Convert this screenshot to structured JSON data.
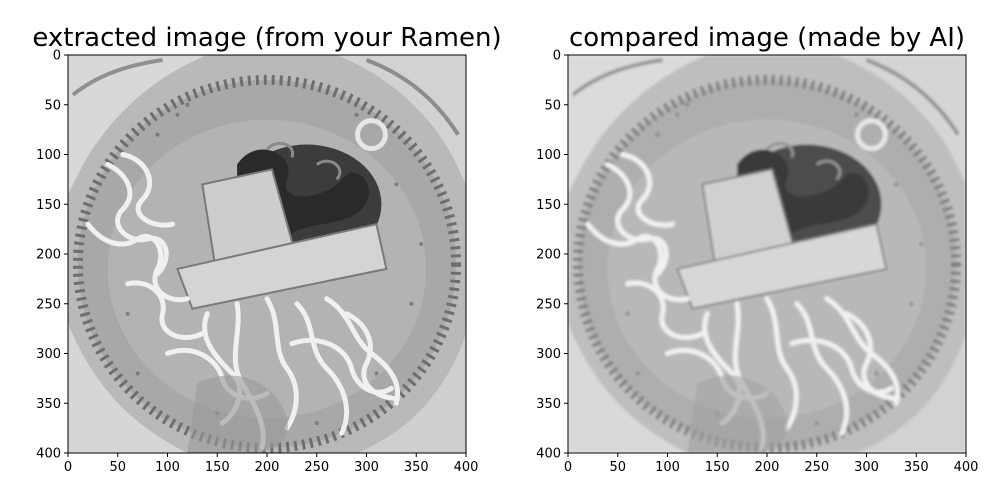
{
  "figure": {
    "background": "#ffffff"
  },
  "chart_data": [
    {
      "type": "heatmap",
      "title": "extracted image (from your Ramen)",
      "xlabel": "",
      "ylabel": "",
      "xlim": [
        0,
        400
      ],
      "ylim": [
        400,
        0
      ],
      "y_axis_inverted": true,
      "xticks": [
        0,
        50,
        100,
        150,
        200,
        250,
        300,
        350,
        400
      ],
      "yticks": [
        0,
        50,
        100,
        150,
        200,
        250,
        300,
        350,
        400
      ],
      "colormap": "gray",
      "grid": false,
      "image_content": "grayscale top-down photo of a bowl of ramen: pale broth, wavy noodles, dark chopped greens, sliced bamboo shoots, bowl rim visible at corners"
    },
    {
      "type": "heatmap",
      "title": "compared image (made by AI)",
      "xlabel": "",
      "ylabel": "",
      "xlim": [
        0,
        400
      ],
      "ylim": [
        400,
        0
      ],
      "y_axis_inverted": true,
      "xticks": [
        0,
        50,
        100,
        150,
        200,
        250,
        300,
        350,
        400
      ],
      "yticks": [
        0,
        50,
        100,
        150,
        200,
        250,
        300,
        350,
        400
      ],
      "colormap": "gray",
      "grid": false,
      "image_content": "grayscale top-down ramen image, slightly softer and lower contrast than the extracted image"
    }
  ]
}
